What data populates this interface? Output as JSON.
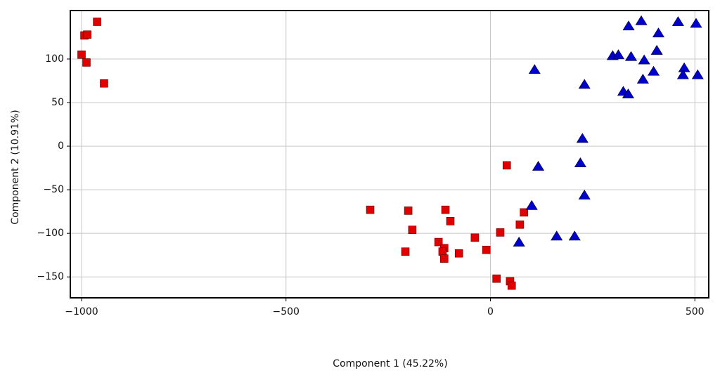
{
  "chart_data": {
    "type": "scatter",
    "xlabel": "Component 1 (45.22%)",
    "ylabel": "Component 2 (10.91%)",
    "xlim": [
      -1027.5,
      534
    ],
    "ylim": [
      -174,
      155.6
    ],
    "xticks": [
      {
        "value": -1000,
        "label": "−1000"
      },
      {
        "value": -500,
        "label": "−500"
      },
      0,
      500
    ],
    "yticks": [
      {
        "value": -150,
        "label": "−150"
      },
      {
        "value": -100,
        "label": "−100"
      },
      {
        "value": -50,
        "label": "−50"
      },
      0,
      50,
      100
    ],
    "grid": true,
    "series": [
      {
        "color": "#e00000",
        "marker": "square",
        "x": [
          -962,
          -993,
          -986,
          -1000,
          -988,
          -945,
          -294,
          -201,
          -191,
          -208,
          -110,
          -98,
          -127,
          -113,
          -117,
          -113,
          -77,
          -38,
          -10,
          40,
          82,
          72,
          24,
          15,
          48,
          52
        ],
        "values": [
          142.7,
          127,
          128,
          105,
          96,
          72,
          -73,
          -74,
          -96,
          -121,
          -73,
          -86,
          -110,
          -117,
          -121,
          -129,
          -123,
          -105,
          -119,
          -22,
          -76,
          -90,
          -99,
          -152,
          -155,
          -160
        ]
      },
      {
        "color": "#0000cc",
        "marker": "triangle",
        "x": [
          369,
          459,
          503,
          338,
          411,
          299,
          313,
          344,
          407,
          376,
          399,
          474,
          471,
          507,
          373,
          325,
          337,
          108,
          230,
          225,
          220,
          117,
          230,
          101,
          70,
          162,
          206
        ],
        "values": [
          144,
          143,
          141,
          138,
          130,
          104,
          105,
          103,
          110,
          99,
          86,
          90,
          82,
          82,
          77,
          63,
          60,
          88,
          71,
          9,
          -19,
          -23,
          -56,
          -68,
          -110,
          -103,
          -103
        ]
      }
    ]
  }
}
